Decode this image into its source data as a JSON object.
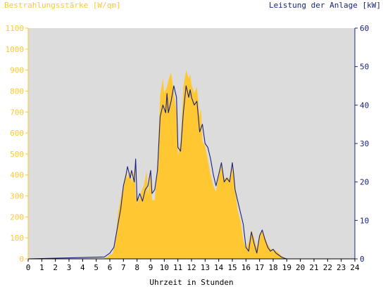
{
  "chart_data": {
    "type": "area",
    "title": "",
    "left_axis_title": "Bestrahlungsstärke [W/qm]",
    "right_axis_title": "Leistung der Anlage [kW]",
    "xlabel": "Uhrzeit in Stunden",
    "xlim": [
      0,
      24
    ],
    "ylim_left": [
      0,
      1100
    ],
    "ylim_right": [
      0,
      60
    ],
    "x_ticks": [
      "0",
      "1",
      "2",
      "3",
      "4",
      "5",
      "6",
      "7",
      "8",
      "9",
      "10",
      "11",
      "12",
      "13",
      "14",
      "15",
      "16",
      "17",
      "18",
      "19",
      "20",
      "21",
      "22",
      "23",
      "24"
    ],
    "y_left_ticks": [
      "0",
      "100",
      "200",
      "300",
      "400",
      "500",
      "600",
      "700",
      "800",
      "900",
      "1000",
      "1100"
    ],
    "y_right_ticks": [
      "0",
      "10",
      "20",
      "30",
      "40",
      "50",
      "60"
    ],
    "grid": false,
    "colors": {
      "plot_background": "#dcdcdc",
      "irradiance": "#ffc832",
      "power": "#1a237e",
      "left_axis_text": "#ffc832",
      "right_axis_text": "#1a237e"
    },
    "series": [
      {
        "name": "Bestrahlungsstärke [W/qm]",
        "axis": "left",
        "style": "filled-area",
        "x": [
          0,
          5.5,
          5.8,
          6.0,
          6.2,
          6.4,
          6.6,
          6.8,
          7.0,
          7.2,
          7.3,
          7.5,
          7.6,
          7.8,
          7.9,
          8.0,
          8.1,
          8.2,
          8.3,
          8.5,
          8.7,
          8.8,
          9.0,
          9.1,
          9.3,
          9.5,
          9.7,
          9.9,
          10.0,
          10.2,
          10.3,
          10.5,
          10.7,
          10.9,
          11.0,
          11.2,
          11.4,
          11.6,
          11.8,
          11.9,
          12.0,
          12.2,
          12.4,
          12.6,
          12.7,
          12.8,
          13.0,
          13.2,
          13.4,
          13.6,
          13.8,
          14.0,
          14.2,
          14.4,
          14.6,
          14.8,
          15.0,
          15.1,
          15.2,
          15.4,
          15.6,
          15.8,
          16.0,
          16.2,
          16.4,
          16.6,
          16.8,
          17.0,
          17.2,
          17.4,
          17.6,
          17.8,
          18.0,
          18.2,
          18.4,
          18.6,
          18.8,
          19.0,
          19.2,
          19.5,
          24
        ],
        "values": [
          0,
          0,
          8,
          20,
          25,
          70,
          220,
          290,
          350,
          420,
          380,
          420,
          360,
          430,
          310,
          260,
          300,
          280,
          320,
          350,
          420,
          300,
          430,
          280,
          280,
          460,
          780,
          860,
          790,
          820,
          850,
          890,
          790,
          700,
          490,
          560,
          820,
          900,
          860,
          880,
          830,
          790,
          820,
          680,
          720,
          560,
          540,
          470,
          400,
          350,
          320,
          400,
          450,
          380,
          390,
          380,
          440,
          400,
          330,
          230,
          180,
          90,
          50,
          80,
          140,
          100,
          50,
          120,
          140,
          100,
          70,
          50,
          40,
          40,
          30,
          15,
          5,
          0,
          0,
          0,
          0
        ]
      },
      {
        "name": "Leistung der Anlage [kW]",
        "axis": "right",
        "style": "line",
        "x": [
          0,
          5.6,
          6.0,
          6.3,
          6.6,
          6.8,
          7.0,
          7.2,
          7.3,
          7.5,
          7.6,
          7.8,
          7.9,
          8.0,
          8.2,
          8.4,
          8.6,
          8.8,
          9.0,
          9.1,
          9.3,
          9.5,
          9.7,
          9.9,
          10.1,
          10.2,
          10.3,
          10.5,
          10.7,
          10.9,
          11.0,
          11.2,
          11.4,
          11.6,
          11.8,
          11.9,
          12.0,
          12.2,
          12.4,
          12.6,
          12.8,
          13.0,
          13.2,
          13.4,
          13.6,
          13.8,
          14.0,
          14.2,
          14.4,
          14.6,
          14.8,
          15.0,
          15.1,
          15.2,
          15.4,
          15.6,
          15.8,
          16.0,
          16.2,
          16.4,
          16.6,
          16.8,
          17.0,
          17.2,
          17.4,
          17.6,
          17.8,
          18.0,
          18.2,
          18.4,
          18.6,
          18.8,
          19.0,
          19.2,
          19.5,
          24
        ],
        "values": [
          0,
          0.5,
          1.5,
          3,
          9,
          13,
          19,
          22,
          24,
          21,
          23,
          20,
          26,
          15,
          17,
          15,
          18,
          19,
          23,
          17,
          18,
          23,
          37,
          40,
          38,
          43,
          38,
          41,
          45,
          42,
          29,
          28,
          38,
          45,
          42,
          44,
          42,
          40,
          41,
          33,
          35,
          30,
          29,
          26,
          22,
          19,
          22,
          25,
          20,
          21,
          20,
          25,
          22,
          18,
          15,
          12,
          9,
          3,
          2,
          7,
          4,
          1.5,
          6,
          7.5,
          5,
          3,
          2,
          2.5,
          1.5,
          1,
          0.5,
          0.2,
          0,
          0,
          0,
          0
        ]
      }
    ]
  }
}
